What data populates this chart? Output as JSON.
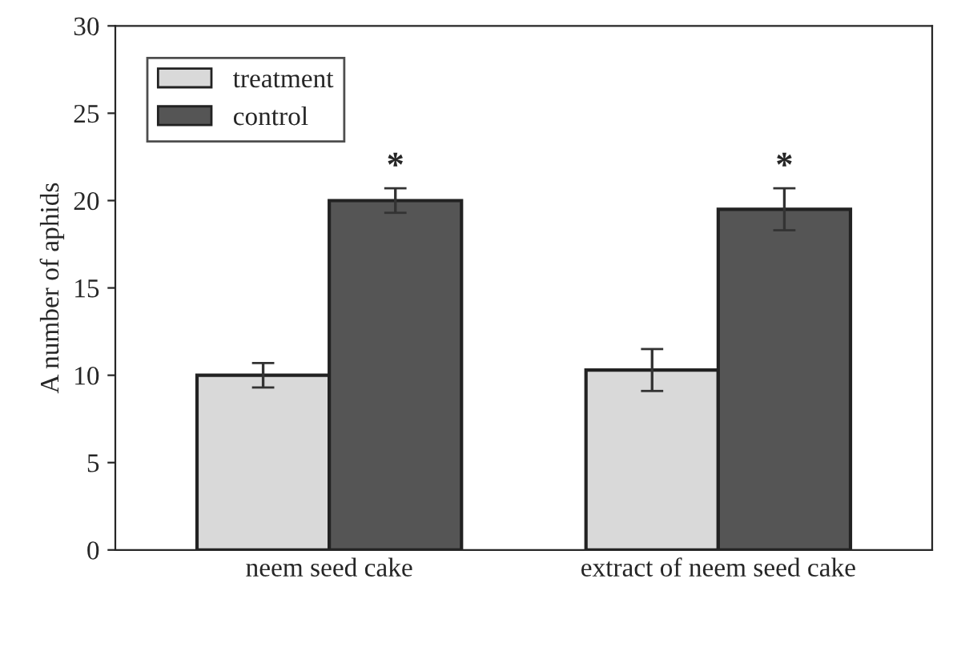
{
  "chart_data": {
    "type": "bar",
    "ylabel": "A number of aphids",
    "categories": [
      "neem seed cake",
      "extract of neem seed cake"
    ],
    "series": [
      {
        "name": "treatment",
        "color": "#d9d9d9",
        "values": [
          10,
          10.3
        ],
        "errors": [
          0.7,
          1.2
        ]
      },
      {
        "name": "control",
        "color": "#555555",
        "values": [
          20,
          19.5
        ],
        "errors": [
          0.7,
          1.2
        ]
      }
    ],
    "ylim": [
      0,
      30
    ],
    "yticks": [
      0,
      5,
      10,
      15,
      20,
      25,
      30
    ],
    "legend": "top left",
    "grid": false,
    "annotations": [
      "*",
      "*"
    ]
  }
}
